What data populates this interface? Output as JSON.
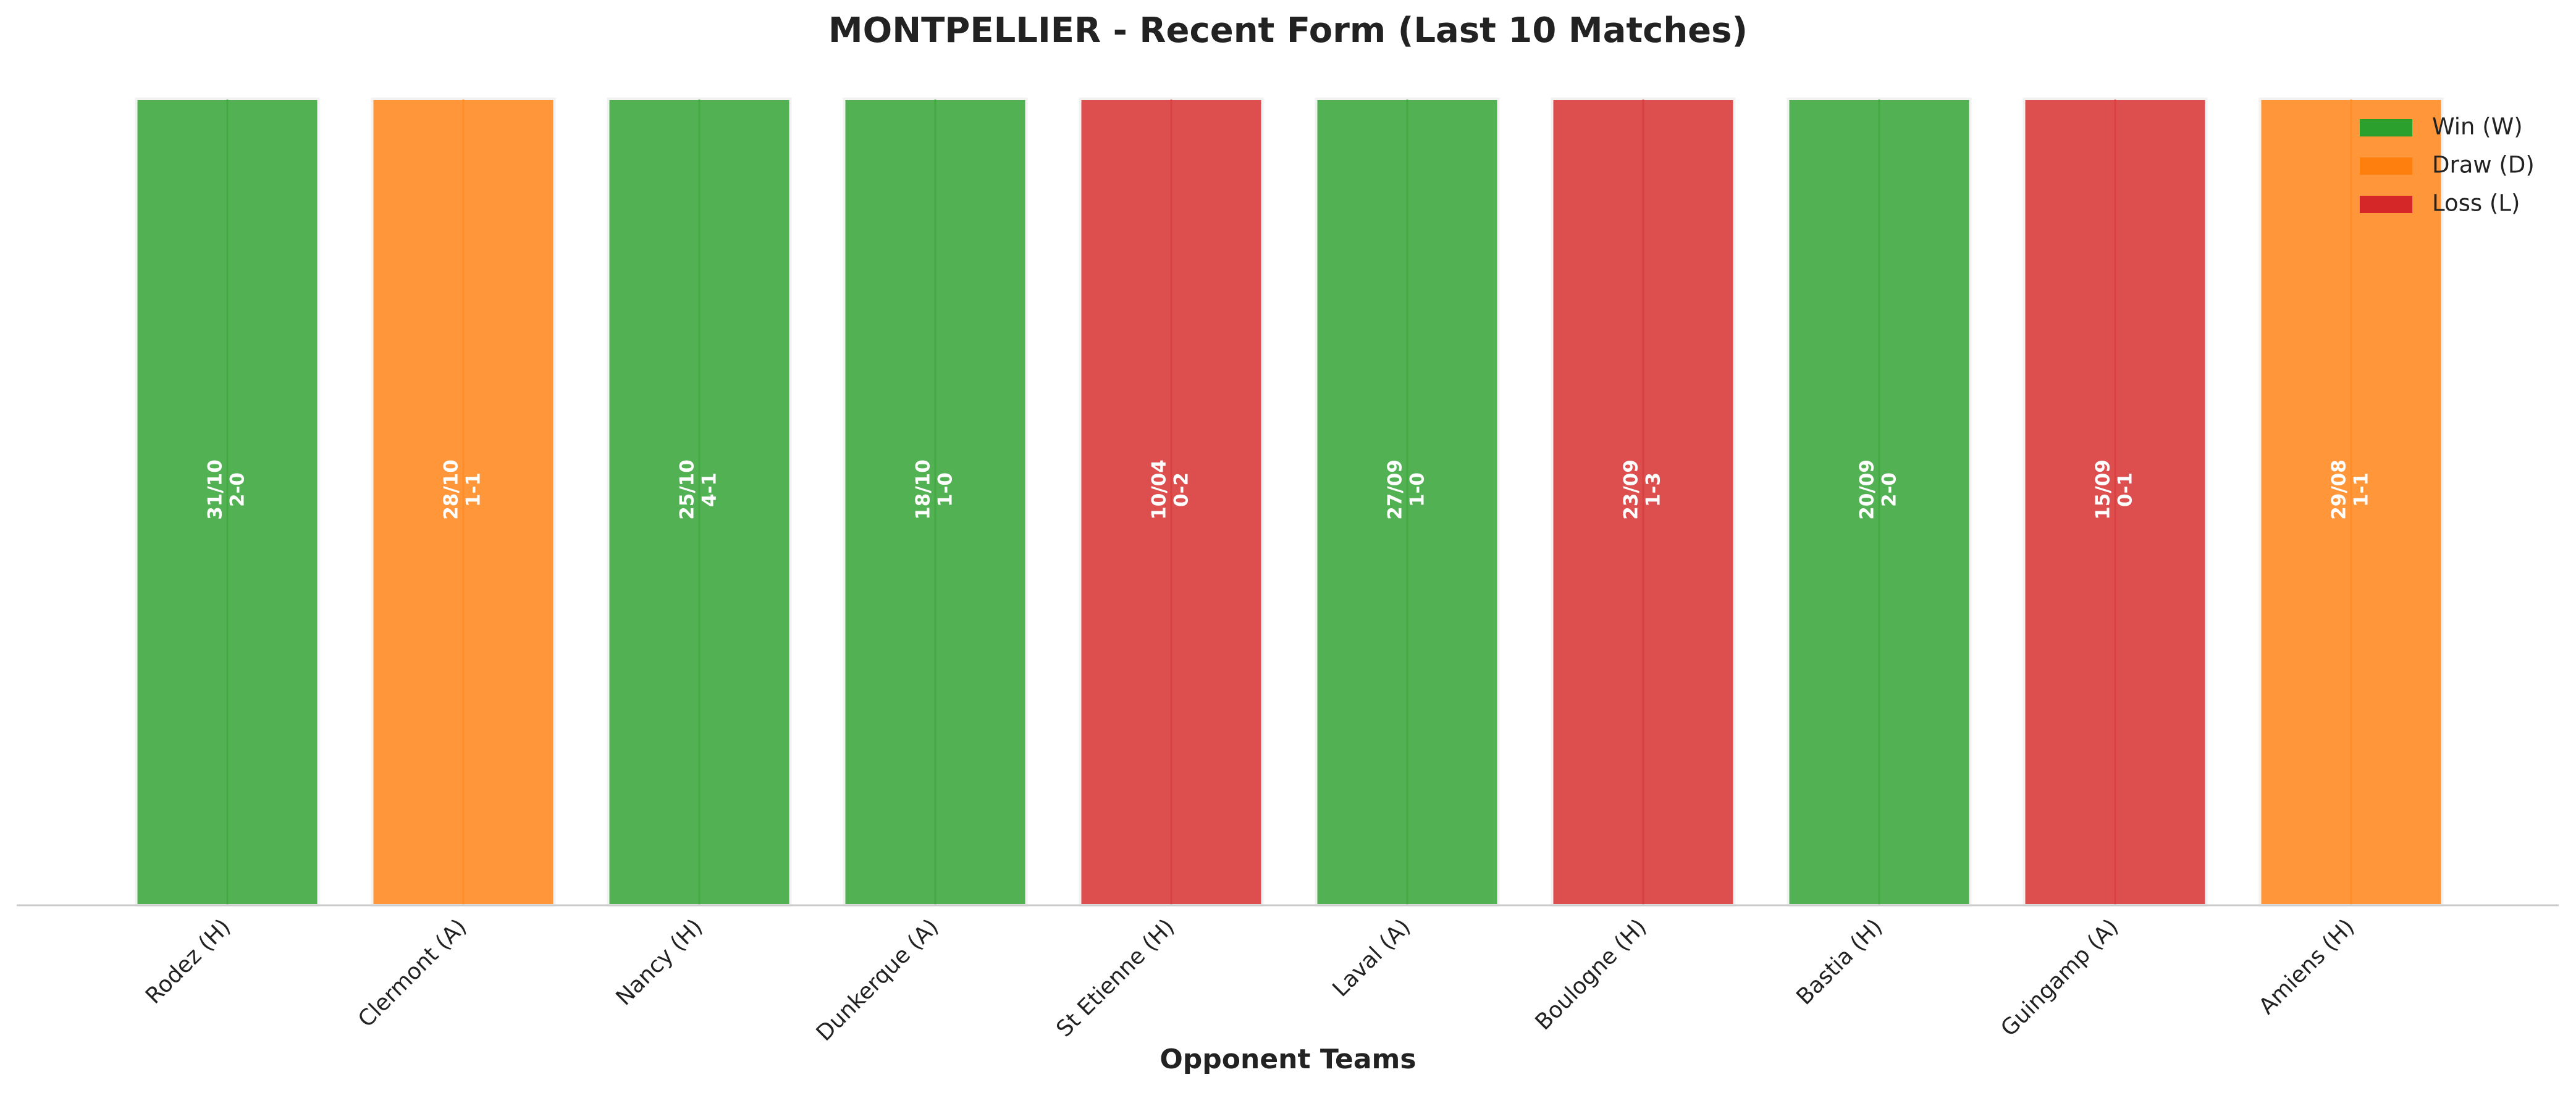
{
  "chart_data": {
    "type": "bar",
    "title": "MONTPELLIER - Recent Form (Last 10 Matches)",
    "x_label": "Opponent Teams",
    "categories": [
      "Rodez (H)",
      "Clermont (A)",
      "Nancy (H)",
      "Dunkerque (A)",
      "St Etienne (H)",
      "Laval (A)",
      "Boulogne (H)",
      "Bastia (H)",
      "Guingamp (A)",
      "Amiens (H)"
    ],
    "dates": [
      "31/10",
      "28/10",
      "25/10",
      "18/10",
      "10/04",
      "27/09",
      "23/09",
      "20/09",
      "15/09",
      "29/08"
    ],
    "scores": [
      "2-0",
      "1-1",
      "4-1",
      "1-0",
      "0-2",
      "1-0",
      "1-3",
      "2-0",
      "0-1",
      "1-1"
    ],
    "values": [
      1,
      1,
      1,
      1,
      1,
      1,
      1,
      1,
      1,
      1
    ],
    "colors": [
      "#2ca02c",
      "#ff7f0e",
      "#2ca02c",
      "#2ca02c",
      "#d62728",
      "#2ca02c",
      "#d62728",
      "#2ca02c",
      "#d62728",
      "#ff7f0e"
    ],
    "ylim": [
      0,
      1
    ],
    "legend": "upper right",
    "series": [
      {
        "name": "Win (W)",
        "color": "#2ca02c"
      },
      {
        "name": "Draw (D)",
        "color": "#ff7f0e"
      },
      {
        "name": "Loss (L)",
        "color": "#d62728"
      }
    ]
  }
}
